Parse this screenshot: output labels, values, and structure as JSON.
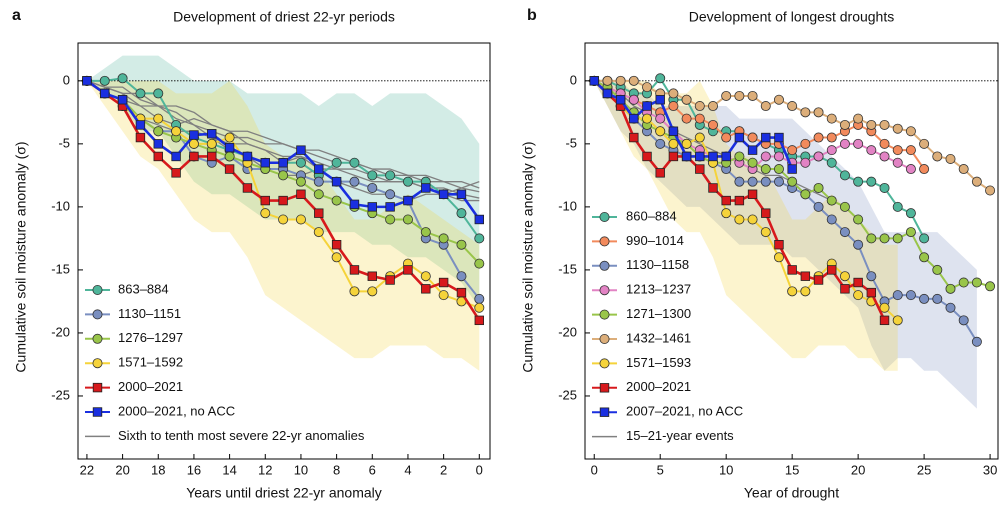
{
  "chart_data": [
    {
      "type": "line",
      "panel_label": "a",
      "title": "Development of driest 22-yr periods",
      "x_label": "Years until driest 22-yr anomaly",
      "y_label": "Cumulative soil moisture anomaly (σ)",
      "xlim": [
        22.5,
        -0.6
      ],
      "ylim": [
        -30,
        3
      ],
      "xticks": [
        22,
        20,
        18,
        16,
        14,
        12,
        10,
        8,
        6,
        4,
        2,
        0
      ],
      "yticks": [
        0,
        -5,
        -10,
        -15,
        -20,
        -25
      ],
      "hline": 0,
      "x": [
        22,
        21,
        20,
        19,
        18,
        17,
        16,
        15,
        14,
        13,
        12,
        11,
        10,
        9,
        8,
        7,
        6,
        5,
        4,
        3,
        2,
        1,
        0
      ],
      "series": [
        {
          "name": "863–884",
          "color": "#4fb59a",
          "marker": "circle",
          "values": [
            0,
            0,
            0.2,
            -1,
            -1,
            -3.5,
            -4.5,
            -5,
            -5.5,
            -6,
            -6.5,
            -6.5,
            -6.5,
            -7.5,
            -6.5,
            -6.5,
            -7.5,
            -7.5,
            -8,
            -8,
            -9,
            -10.5,
            -12.5
          ],
          "band_upper": [
            0,
            1,
            2,
            2,
            2,
            1,
            0,
            0,
            0,
            -1,
            -1,
            -1,
            -1,
            -2,
            -1,
            -1,
            -2,
            -1,
            -1,
            -1,
            -2,
            -3,
            -5
          ],
          "band_lower": [
            0,
            -1,
            -2,
            -4,
            -4,
            -6,
            -8,
            -9,
            -9,
            -10,
            -11,
            -11,
            -11,
            -12,
            -12,
            -12,
            -13,
            -13,
            -14,
            -14,
            -15,
            -16,
            -18
          ]
        },
        {
          "name": "1130–1151",
          "color": "#7a8fc0",
          "marker": "circle",
          "values": [
            0,
            -1,
            -1.5,
            -3,
            -4,
            -4,
            -6,
            -6.5,
            -6,
            -7,
            -7,
            -7,
            -7.5,
            -8,
            -8,
            -8,
            -8.5,
            -9,
            -9.5,
            -12.5,
            -13,
            -15.5,
            -17.3
          ]
        },
        {
          "name": "1276–1297",
          "color": "#99c54a",
          "marker": "circle",
          "values": [
            0,
            -1,
            -1.5,
            -3,
            -4,
            -4.5,
            -5,
            -5.5,
            -6,
            -6.5,
            -7,
            -7.5,
            -8,
            -9,
            -9.5,
            -10,
            -10.5,
            -11,
            -11,
            -12,
            -12.5,
            -13,
            -14.5
          ]
        },
        {
          "name": "1571–1592",
          "color": "#f5d33a",
          "marker": "circle",
          "values": [
            0,
            -1,
            -2,
            -3,
            -3,
            -4,
            -5,
            -5,
            -4.5,
            -6.5,
            -10.5,
            -11,
            -11,
            -12,
            -14,
            -16.7,
            -16.7,
            -15.5,
            -14.5,
            -15.5,
            -17,
            -17.5,
            -18
          ],
          "band_upper": [
            0,
            0,
            0,
            0,
            0,
            -1,
            -1,
            -1,
            0,
            -2,
            -5,
            -6,
            -6,
            -7,
            -9,
            -11,
            -11,
            -10,
            -9,
            -10,
            -11,
            -12,
            -13
          ],
          "band_lower": [
            0,
            -2,
            -4,
            -6,
            -7,
            -9,
            -11,
            -12,
            -12,
            -14,
            -17,
            -18,
            -19,
            -20,
            -21,
            -22,
            -22,
            -21,
            -21,
            -21,
            -22,
            -22,
            -23
          ]
        },
        {
          "name": "2000–2021",
          "color": "#d7191c",
          "marker": "square",
          "values": [
            0,
            -1,
            -2,
            -4.5,
            -6,
            -7.3,
            -6,
            -6,
            -7,
            -8.5,
            -9.5,
            -9.5,
            -9,
            -10.5,
            -13,
            -15,
            -15.5,
            -15.8,
            -15,
            -16.5,
            -16,
            -16.8,
            -19
          ]
        },
        {
          "name": "2000–2021, no ACC",
          "color": "#1a2fe0",
          "marker": "square",
          "values": [
            0,
            -1,
            -1.5,
            -3.5,
            -5,
            -6,
            -4.3,
            -4.2,
            -5.3,
            -6,
            -6.5,
            -6.5,
            -5.5,
            -7,
            -8,
            -9.8,
            -10,
            -10,
            -9.5,
            -8.5,
            -9,
            -9,
            -11
          ]
        },
        {
          "name": "Sixth to tenth most severe 22-yr anomalies",
          "color": "#808080",
          "marker": "none",
          "values": [
            0,
            -0.5,
            -1,
            -2,
            -3,
            -3.5,
            -3,
            -3.5,
            -4,
            -5,
            -5.5,
            -6,
            -6,
            -6.5,
            -7,
            -7,
            -7.5,
            -8,
            -8,
            -8.5,
            -8.5,
            -9,
            -9.3
          ]
        },
        {
          "color": "#808080",
          "marker": "none",
          "values": [
            0,
            -1,
            -1.5,
            -2,
            -2,
            -3,
            -3.5,
            -4,
            -4.5,
            -4.5,
            -5,
            -5,
            -5.5,
            -5.5,
            -6,
            -6.5,
            -7,
            -7,
            -7.5,
            -7.5,
            -8,
            -8,
            -8.5
          ]
        },
        {
          "color": "#808080",
          "marker": "none",
          "values": [
            0,
            -0.5,
            -0.5,
            -1.5,
            -2,
            -2.5,
            -3.5,
            -4.5,
            -5,
            -5,
            -5.5,
            -6.5,
            -6,
            -7,
            -7,
            -7.5,
            -8,
            -8,
            -8,
            -8.5,
            -9,
            -8.5,
            -8
          ]
        },
        {
          "color": "#808080",
          "marker": "none",
          "values": [
            0,
            -1,
            -2,
            -3,
            -3.5,
            -4,
            -4,
            -4.5,
            -5.5,
            -6,
            -7,
            -7.5,
            -7.5,
            -7,
            -8,
            -8.5,
            -9,
            -9,
            -9.5,
            -9,
            -9,
            -9.5,
            -9.5
          ]
        },
        {
          "color": "#808080",
          "marker": "none",
          "values": [
            0,
            -0.5,
            -1,
            -1,
            -2,
            -2,
            -2.5,
            -3.5,
            -4,
            -4,
            -4.5,
            -5,
            -5.5,
            -6,
            -6.5,
            -6.5,
            -7,
            -7.5,
            -7.5,
            -8,
            -8,
            -8.5,
            -8.8
          ]
        }
      ]
    },
    {
      "type": "line",
      "panel_label": "b",
      "title": "Development of longest droughts",
      "x_label": "Year of drought",
      "y_label": "Cumulative soil moisture anomaly (σ)",
      "xlim": [
        -0.7,
        30.6
      ],
      "ylim": [
        -30,
        3
      ],
      "xticks": [
        0,
        5,
        10,
        15,
        20,
        25,
        30
      ],
      "yticks": [
        0,
        -5,
        -10,
        -15,
        -20,
        -25
      ],
      "hline": 0,
      "x": [
        0,
        1,
        2,
        3,
        4,
        5,
        6,
        7,
        8,
        9,
        10,
        11,
        12,
        13,
        14,
        15,
        16,
        17,
        18,
        19,
        20,
        21,
        22,
        23,
        24,
        25,
        26,
        27,
        28,
        29,
        30
      ],
      "series": [
        {
          "name": "860–884",
          "color": "#4fb59a",
          "marker": "circle",
          "values": [
            0,
            0,
            -0.5,
            -1,
            -1,
            0.2,
            -1.5,
            -1.5,
            -3.5,
            -4,
            -4,
            -4,
            -4.5,
            -5,
            -5.5,
            -6,
            -6,
            -6,
            -6.5,
            -7.5,
            -8,
            -8,
            -8.5,
            -10,
            -10.5,
            -12.5,
            null,
            null,
            null,
            null,
            null
          ]
        },
        {
          "name": "990–1014",
          "color": "#f28a5c",
          "marker": "circle",
          "values": [
            0,
            -0.5,
            -1,
            -1.5,
            -2,
            -2.5,
            -2,
            -3,
            -3,
            -3.5,
            -4.5,
            -4,
            -4.5,
            -5,
            -5,
            -5.5,
            -5,
            -4.5,
            -4.5,
            -4,
            -3.5,
            -4,
            -5,
            -5.5,
            -5.5,
            -7,
            null,
            null,
            null,
            null,
            null
          ]
        },
        {
          "name": "1130–1158",
          "color": "#7a8fc0",
          "marker": "circle",
          "values": [
            0,
            -1,
            -2,
            -3,
            -4,
            -5,
            -5.5,
            -6,
            -6,
            -6.5,
            -7,
            -8,
            -8,
            -8,
            -8,
            -8.5,
            -9,
            -10,
            -11,
            -12,
            -13,
            -15.5,
            -17.5,
            -17,
            -17,
            -17.3,
            -17.3,
            -18,
            -19,
            -20.7,
            null
          ],
          "band_upper": [
            0,
            0,
            0,
            -1,
            -1,
            -2,
            -2,
            -2,
            -2,
            -2,
            -2,
            -3,
            -3,
            -3,
            -3,
            -3,
            -4,
            -5,
            -6,
            -7,
            -8,
            -10,
            -12,
            -12,
            -12,
            -12,
            -12,
            -13,
            -14,
            -15,
            null
          ],
          "band_lower": [
            0,
            -2,
            -4,
            -5,
            -7,
            -8,
            -9,
            -10,
            -10,
            -11,
            -12,
            -13,
            -13,
            -13,
            -13,
            -14,
            -14,
            -15,
            -16,
            -17,
            -18,
            -21,
            -23,
            -22,
            -22,
            -23,
            -23,
            -24,
            -25,
            -26,
            null
          ]
        },
        {
          "name": "1213–1237",
          "color": "#e283c4",
          "marker": "circle",
          "values": [
            0,
            -0.5,
            -1,
            -1.5,
            -2.5,
            -3,
            -4,
            -5,
            -5.5,
            -6,
            -6,
            -6.5,
            -7,
            -6,
            -6,
            -6.5,
            -6.5,
            -6,
            -5.5,
            -5,
            -5,
            -5.5,
            -6,
            -6.5,
            -7,
            null,
            null,
            null,
            null,
            null,
            null
          ]
        },
        {
          "name": "1271–1300",
          "color": "#99c54a",
          "marker": "circle",
          "values": [
            0,
            -0.5,
            -1.5,
            -2.5,
            -3.5,
            -4,
            -4.5,
            -5,
            -6,
            -6.5,
            -6.5,
            -6,
            -6.5,
            -7,
            -7,
            -8,
            -9,
            -8.5,
            -9.5,
            -10,
            -11,
            -12.5,
            -12.5,
            -12.5,
            -12,
            -14,
            -15,
            -16.5,
            -16,
            -16,
            -16.3
          ]
        },
        {
          "name": "1432–1461",
          "color": "#dcae7a",
          "marker": "circle",
          "values": [
            0,
            0,
            0,
            0,
            -0.5,
            -1,
            -1,
            -1.5,
            -2,
            -2,
            -1.2,
            -1.2,
            -1.2,
            -2,
            -1.5,
            -2,
            -2.5,
            -2.5,
            -3,
            -3.5,
            -3,
            -3.5,
            -3.5,
            -3.8,
            -4,
            -5,
            -6,
            -6.2,
            -7,
            -8,
            -8.7
          ]
        },
        {
          "name": "1571–1593",
          "color": "#f5d33a",
          "marker": "circle",
          "values": [
            0,
            -1,
            -2,
            -3,
            -3,
            -4,
            -5,
            -5,
            -4.5,
            -6.5,
            -10.5,
            -11,
            -11,
            -12,
            -14,
            -16.7,
            -16.7,
            -15.5,
            -14.5,
            -15.5,
            -17,
            -17.5,
            -18,
            -19,
            null,
            null,
            null,
            null,
            null,
            null,
            null
          ],
          "band_upper": [
            0,
            0,
            0,
            0,
            0,
            -1,
            -1,
            -1,
            0,
            -2,
            -5,
            -6,
            -6,
            -7,
            -9,
            -11,
            -11,
            -10,
            -9,
            -10,
            -11,
            -12,
            -13,
            -13,
            null,
            null,
            null,
            null,
            null,
            null,
            null
          ],
          "band_lower": [
            0,
            -2,
            -4,
            -6,
            -7,
            -9,
            -11,
            -12,
            -12,
            -14,
            -17,
            -18,
            -19,
            -20,
            -21,
            -22,
            -22,
            -21,
            -21,
            -21,
            -22,
            -22,
            -23,
            -23,
            null,
            null,
            null,
            null,
            null,
            null,
            null
          ]
        },
        {
          "name": "2000–2021",
          "color": "#d7191c",
          "marker": "square",
          "values": [
            0,
            -1,
            -2,
            -4.5,
            -6,
            -7.3,
            -6,
            -6,
            -7,
            -8.5,
            -9.5,
            -9.5,
            -9,
            -10.5,
            -13,
            -15,
            -15.5,
            -15.8,
            -15,
            -16.5,
            -16,
            -16.8,
            -19,
            null,
            null,
            null,
            null,
            null,
            null,
            null,
            null
          ]
        },
        {
          "name": "2007–2021, no ACC",
          "color": "#1a2fe0",
          "marker": "square",
          "values": [
            0,
            -1,
            -1.5,
            -3,
            -2,
            -1.5,
            -4,
            -6,
            -6,
            -6,
            -6,
            -4.5,
            -5.5,
            -4.5,
            -4.5,
            -7,
            null,
            null,
            null,
            null,
            null,
            null,
            null,
            null,
            null,
            null,
            null,
            null,
            null,
            null,
            null
          ]
        },
        {
          "name": "15–21-year events",
          "color": "#808080",
          "marker": "none",
          "values": [
            0,
            -0.5,
            -1,
            -2,
            -2.5,
            -3,
            -4,
            -4.5,
            -5,
            -5.5,
            -6,
            -6.5,
            -7,
            -7.5,
            -7.5,
            -8,
            -8.5,
            -9,
            -9.5,
            null,
            null,
            null,
            null,
            null,
            null,
            null,
            null,
            null,
            null,
            null,
            null
          ]
        }
      ]
    }
  ]
}
